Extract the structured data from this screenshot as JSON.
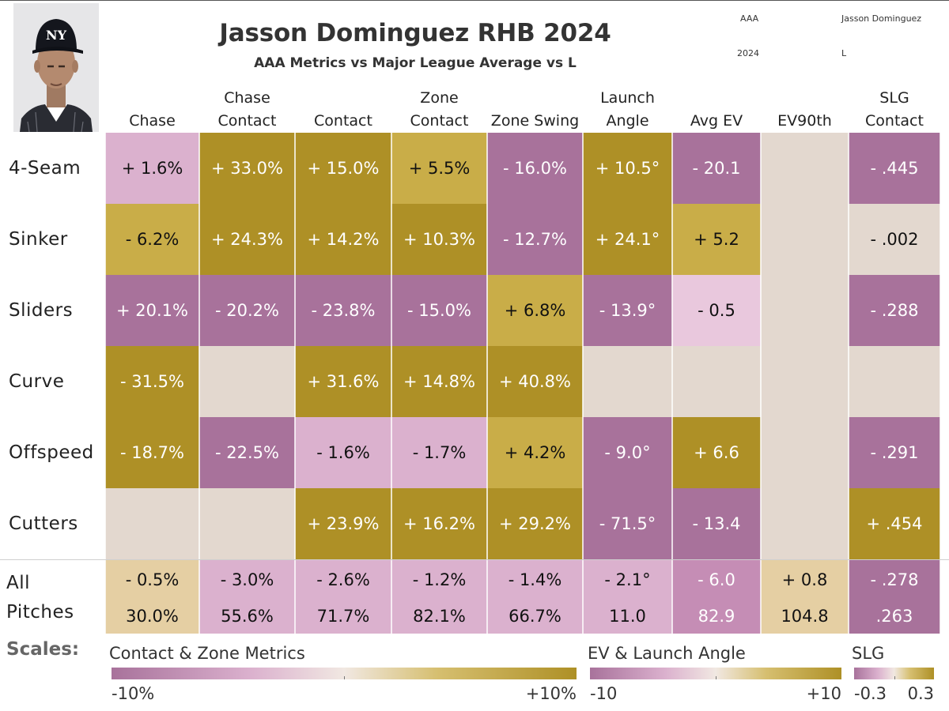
{
  "title": "Jasson Dominguez RHB 2024",
  "subtitle": "AAA Metrics vs Major League Average vs L",
  "filters": {
    "level": "AAA",
    "player": "Jasson Dominguez",
    "year": "2024",
    "hand": "L"
  },
  "colors": {
    "purple": "#a8729b",
    "light_purple": "#dbb1ce",
    "neutral": "#e3d8cf",
    "light_gold": "#c9ad48",
    "gold": "#ae9026",
    "tan": "#e5cfa3"
  },
  "chart_data": {
    "type": "heatmap",
    "title": "Jasson Dominguez RHB 2024",
    "subtitle": "AAA Metrics vs Major League Average vs L",
    "columns": [
      {
        "lines": [
          "Chase"
        ]
      },
      {
        "lines": [
          "Chase",
          "Contact"
        ]
      },
      {
        "lines": [
          "Contact"
        ]
      },
      {
        "lines": [
          "Zone",
          "Contact"
        ]
      },
      {
        "lines": [
          "Zone Swing"
        ]
      },
      {
        "lines": [
          "Launch",
          "Angle"
        ]
      },
      {
        "lines": [
          "Avg EV"
        ]
      },
      {
        "lines": [
          "EV90th"
        ]
      },
      {
        "lines": [
          "SLG",
          "Contact"
        ]
      }
    ],
    "rows": [
      {
        "label": "4-Seam",
        "cells": [
          {
            "text": "+ 1.6%",
            "tone": "light_purple"
          },
          {
            "text": "+ 33.0%",
            "tone": "gold"
          },
          {
            "text": "+ 15.0%",
            "tone": "gold"
          },
          {
            "text": "+ 5.5%",
            "tone": "light_gold"
          },
          {
            "text": "- 16.0%",
            "tone": "purple"
          },
          {
            "text": "+ 10.5°",
            "tone": "gold"
          },
          {
            "text": "- 20.1",
            "tone": "purple"
          },
          {
            "text": "",
            "tone": "neutral"
          },
          {
            "text": "- .445",
            "tone": "purple"
          }
        ]
      },
      {
        "label": "Sinker",
        "cells": [
          {
            "text": "- 6.2%",
            "tone": "light_gold"
          },
          {
            "text": "+ 24.3%",
            "tone": "gold"
          },
          {
            "text": "+ 14.2%",
            "tone": "gold"
          },
          {
            "text": "+ 10.3%",
            "tone": "gold"
          },
          {
            "text": "- 12.7%",
            "tone": "purple"
          },
          {
            "text": "+ 24.1°",
            "tone": "gold"
          },
          {
            "text": "+ 5.2",
            "tone": "light_gold"
          },
          {
            "text": "",
            "tone": "neutral"
          },
          {
            "text": "- .002",
            "tone": "neutral"
          }
        ]
      },
      {
        "label": "Sliders",
        "cells": [
          {
            "text": "+ 20.1%",
            "tone": "purple"
          },
          {
            "text": "- 20.2%",
            "tone": "purple"
          },
          {
            "text": "- 23.8%",
            "tone": "purple"
          },
          {
            "text": "- 15.0%",
            "tone": "purple"
          },
          {
            "text": "+ 6.8%",
            "tone": "light_gold"
          },
          {
            "text": "- 13.9°",
            "tone": "purple"
          },
          {
            "text": "- 0.5",
            "tone": "light_purple2"
          },
          {
            "text": "",
            "tone": "neutral"
          },
          {
            "text": "- .288",
            "tone": "purple"
          }
        ]
      },
      {
        "label": "Curve",
        "cells": [
          {
            "text": "- 31.5%",
            "tone": "gold"
          },
          {
            "text": "",
            "tone": "neutral"
          },
          {
            "text": "+ 31.6%",
            "tone": "gold"
          },
          {
            "text": "+ 14.8%",
            "tone": "gold"
          },
          {
            "text": "+ 40.8%",
            "tone": "gold"
          },
          {
            "text": "",
            "tone": "neutral"
          },
          {
            "text": "",
            "tone": "neutral"
          },
          {
            "text": "",
            "tone": "neutral"
          },
          {
            "text": "",
            "tone": "neutral"
          }
        ]
      },
      {
        "label": "Offspeed",
        "cells": [
          {
            "text": "- 18.7%",
            "tone": "gold"
          },
          {
            "text": "- 22.5%",
            "tone": "purple"
          },
          {
            "text": "- 1.6%",
            "tone": "light_purple"
          },
          {
            "text": "- 1.7%",
            "tone": "light_purple"
          },
          {
            "text": "+ 4.2%",
            "tone": "light_gold"
          },
          {
            "text": "- 9.0°",
            "tone": "purple"
          },
          {
            "text": "+ 6.6",
            "tone": "gold"
          },
          {
            "text": "",
            "tone": "neutral"
          },
          {
            "text": "- .291",
            "tone": "purple"
          }
        ]
      },
      {
        "label": "Cutters",
        "cells": [
          {
            "text": "",
            "tone": "neutral"
          },
          {
            "text": "",
            "tone": "neutral"
          },
          {
            "text": "+ 23.9%",
            "tone": "gold"
          },
          {
            "text": "+ 16.2%",
            "tone": "gold"
          },
          {
            "text": "+ 29.2%",
            "tone": "gold"
          },
          {
            "text": "- 71.5°",
            "tone": "purple"
          },
          {
            "text": "- 13.4",
            "tone": "purple"
          },
          {
            "text": "",
            "tone": "neutral"
          },
          {
            "text": "+ .454",
            "tone": "gold"
          }
        ]
      }
    ],
    "all_pitches": {
      "label": "All Pitches",
      "cells": [
        {
          "diff": "- 0.5%",
          "value": "30.0%",
          "tone": "tan"
        },
        {
          "diff": "- 3.0%",
          "value": "55.6%",
          "tone": "light_purple"
        },
        {
          "diff": "- 2.6%",
          "value": "71.7%",
          "tone": "light_purple"
        },
        {
          "diff": "- 1.2%",
          "value": "82.1%",
          "tone": "light_purple"
        },
        {
          "diff": "- 1.4%",
          "value": "66.7%",
          "tone": "light_purple"
        },
        {
          "diff": "- 2.1°",
          "value": "11.0",
          "tone": "light_purple"
        },
        {
          "diff": "- 6.0",
          "value": "82.9",
          "tone": "mid_purple"
        },
        {
          "diff": "+ 0.8",
          "value": "104.8",
          "tone": "tan"
        },
        {
          "diff": "- .278",
          "value": ".263",
          "tone": "purple"
        }
      ]
    },
    "scales": {
      "label": "Scales:",
      "items": [
        {
          "title": "Contact & Zone Metrics",
          "min": "-10%",
          "max": "+10%"
        },
        {
          "title": "EV & Launch Angle",
          "min": "-10",
          "max": "+10"
        },
        {
          "title": "SLG",
          "min": "-0.3",
          "max": "0.3"
        }
      ]
    }
  }
}
